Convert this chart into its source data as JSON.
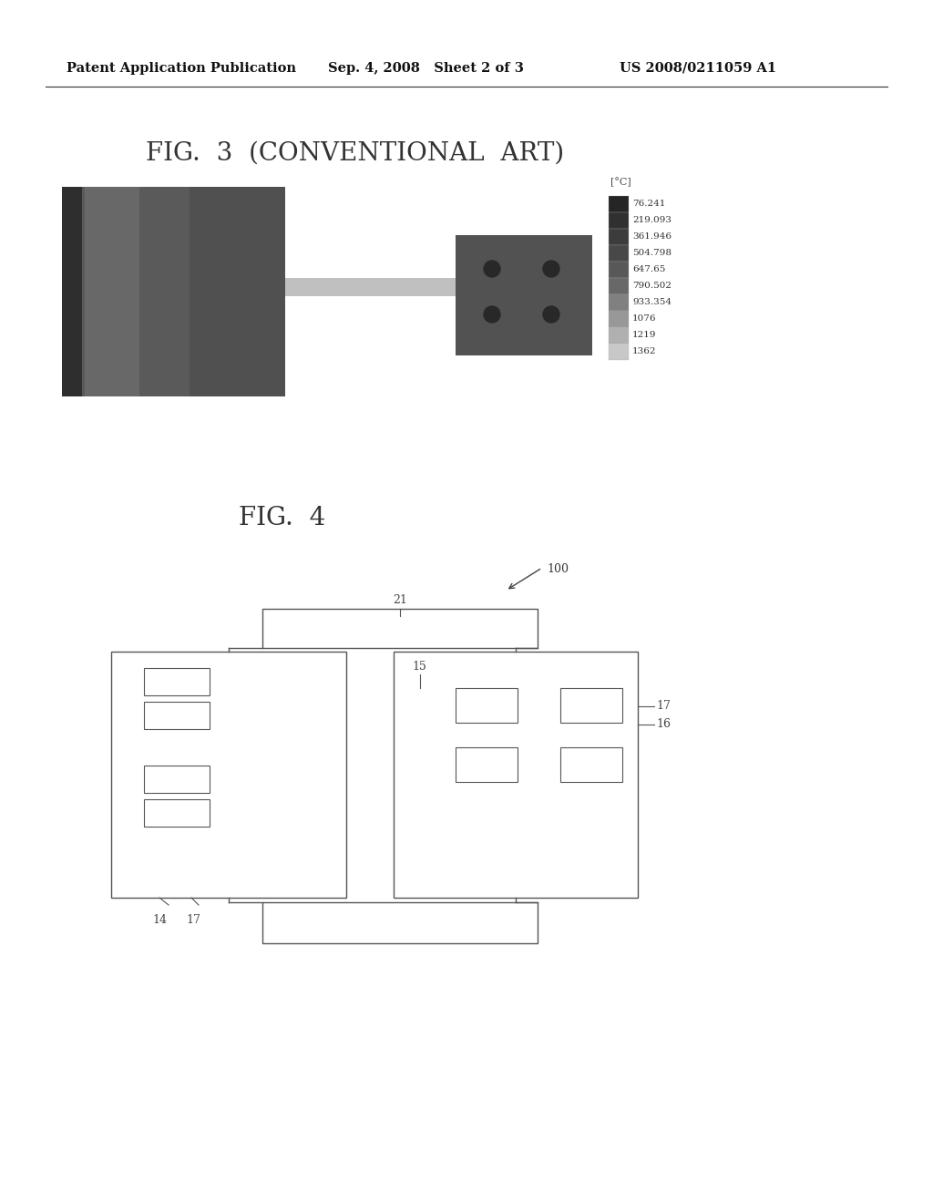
{
  "bg_color": "#ffffff",
  "header_left": "Patent Application Publication",
  "header_mid": "Sep. 4, 2008   Sheet 2 of 3",
  "header_right": "US 2008/0211059 A1",
  "fig3_title": "FIG.  3  (CONVENTIONAL  ART)",
  "fig4_title": "FIG.  4",
  "colorbar_label": "[°C]",
  "colorbar_values": [
    "76.241",
    "219.093",
    "361.946",
    "504.798",
    "647.65",
    "790.502",
    "933.354",
    "1076",
    "1219",
    "1362"
  ],
  "colorbar_colors": [
    "#252525",
    "#303030",
    "#3c3c3c",
    "#484848",
    "#585858",
    "#686868",
    "#808080",
    "#989898",
    "#b0b0b0",
    "#c8c8c8"
  ],
  "label_100": "100",
  "label_21": "21",
  "label_15": "15",
  "label_14": "14",
  "label_17a": "17",
  "label_17b": "17",
  "label_16": "16"
}
